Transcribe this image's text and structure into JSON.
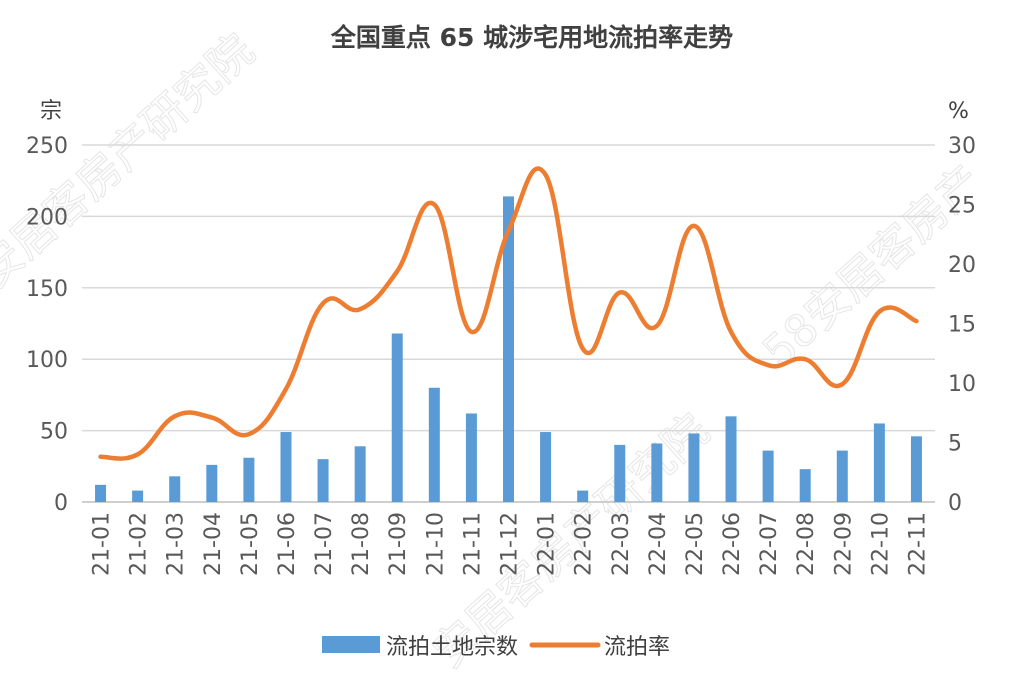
{
  "chart_data": {
    "type": "bar+line",
    "title": "全国重点 65 城涉宅用地流拍率走势",
    "categories": [
      "21-01",
      "21-02",
      "21-03",
      "21-04",
      "21-05",
      "21-06",
      "21-07",
      "21-08",
      "21-09",
      "21-10",
      "21-11",
      "21-12",
      "22-01",
      "22-02",
      "22-03",
      "22-04",
      "22-05",
      "22-06",
      "22-07",
      "22-08",
      "22-09",
      "22-10",
      "22-11"
    ],
    "left_axis": {
      "unit": "宗",
      "ylim": [
        0,
        250
      ],
      "ticks": [
        "0",
        "50",
        "100",
        "150",
        "200",
        "250"
      ]
    },
    "right_axis": {
      "unit": "%",
      "ylim": [
        0,
        30
      ],
      "ticks": [
        "0",
        "5",
        "10",
        "15",
        "20",
        "25",
        "30"
      ]
    },
    "series": [
      {
        "name": "流拍土地宗数",
        "type": "bar",
        "axis": "left",
        "color": "#5b9bd5",
        "values": [
          12,
          8,
          18,
          26,
          31,
          49,
          30,
          39,
          118,
          80,
          62,
          214,
          49,
          8,
          40,
          41,
          48,
          60,
          36,
          23,
          36,
          55,
          46
        ]
      },
      {
        "name": "流拍率",
        "type": "line",
        "axis": "right",
        "color": "#ed7d31",
        "values": [
          3.8,
          4.0,
          7.2,
          7.1,
          5.7,
          9.5,
          16.7,
          16.2,
          19.4,
          25.0,
          14.3,
          22.8,
          27.5,
          12.9,
          17.6,
          14.8,
          23.2,
          14.3,
          11.5,
          12.0,
          9.9,
          16.0,
          15.2
        ]
      }
    ],
    "grid": true,
    "legend": "bottom"
  },
  "watermarks": [
    "安居客房产研究院",
    "58安居客房产",
    "安居客房产研究院"
  ]
}
